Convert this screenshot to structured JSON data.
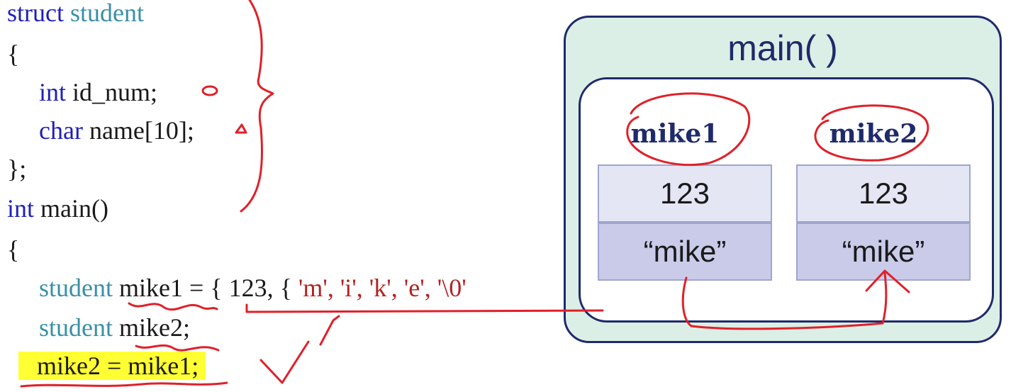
{
  "code": {
    "line1": {
      "kw": "struct",
      "type": "student"
    },
    "line2": "{",
    "line3": {
      "kw": "int",
      "rest": " id_num;"
    },
    "line4": {
      "kw": "char",
      "rest": " name[10];"
    },
    "line5": "};",
    "line6": {
      "kw": "int",
      "rest": " main()"
    },
    "line7": "{",
    "line8": {
      "type": "student",
      "pre": " mike1 = { 123, { ",
      "chars": "'m', 'i', 'k', 'e', '\\0'"
    },
    "line9": {
      "type": "student",
      "rest": " mike2;"
    },
    "line10": "mike2 = mike1;"
  },
  "diagram": {
    "title": "main( )",
    "vars": [
      {
        "name": "mike1",
        "id_num": "123",
        "name_value": "“mike”"
      },
      {
        "name": "mike2",
        "id_num": "123",
        "name_value": "“mike”"
      }
    ]
  },
  "colors": {
    "keyword": "#2020b8",
    "type": "#3a8fa8",
    "string": "#b22222",
    "highlight": "#ffff33",
    "frame": "#1f2a6b",
    "ink": "#e0202a"
  }
}
